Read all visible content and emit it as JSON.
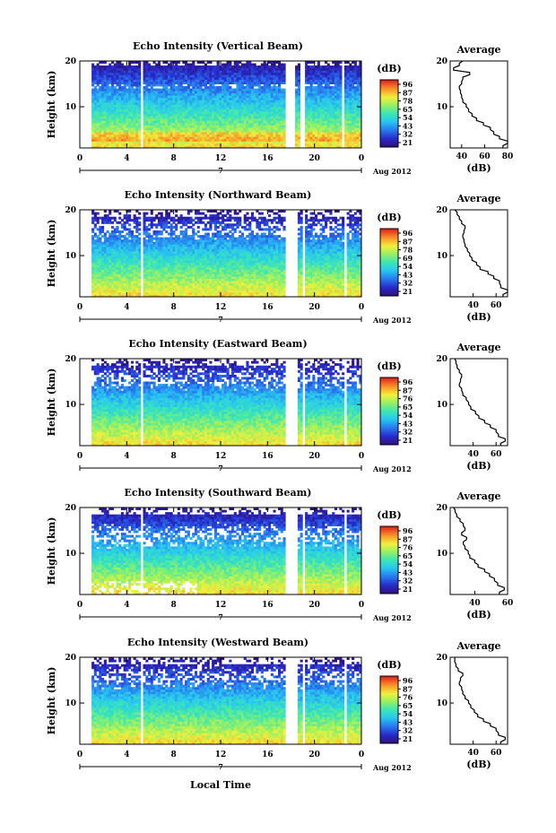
{
  "figure": {
    "xlabel": "Local Time",
    "date_label": "Aug 2012",
    "day_marker": "7",
    "avg_title": "Average",
    "avg_xlabel": "(dB)",
    "cbar_label": "(dB)",
    "panel_ylabel": "Height (km)"
  },
  "chart_data": [
    {
      "type": "heatmap",
      "title": "Echo Intensity (Vertical Beam)",
      "ylabel": "Height (km)",
      "xlim": [
        0,
        24
      ],
      "ylim": [
        1,
        20
      ],
      "x_ticks": [
        "0",
        "4",
        "8",
        "12",
        "16",
        "20",
        "0"
      ],
      "y_ticks": [
        "10",
        "20"
      ],
      "colorbar": {
        "label": "(dB)",
        "ticks": [
          96,
          87,
          78,
          65,
          54,
          43,
          32,
          21
        ]
      },
      "gaps_hours": [
        [
          5.1,
          5.4
        ],
        [
          17.6,
          18.4
        ],
        [
          18.8,
          19.1
        ],
        [
          22.4,
          22.6
        ]
      ],
      "avg_profile": {
        "title": "Average",
        "xlabel": "(dB)",
        "xlim": [
          30,
          80
        ],
        "x_ticks": [
          40,
          60,
          80
        ],
        "height": [
          1,
          2,
          3,
          4,
          5,
          6,
          7,
          8,
          9,
          10,
          11,
          12,
          13,
          14,
          15,
          16,
          17,
          18,
          19,
          20
        ],
        "db": [
          76,
          80,
          73,
          68,
          65,
          59,
          53,
          49,
          46,
          44,
          41,
          40,
          39,
          38,
          40,
          41,
          47,
          33,
          38,
          41
        ]
      }
    },
    {
      "type": "heatmap",
      "title": "Echo Intensity (Northward Beam)",
      "ylabel": "Height (km)",
      "xlim": [
        0,
        24
      ],
      "ylim": [
        1,
        20
      ],
      "x_ticks": [
        "0",
        "4",
        "8",
        "12",
        "16",
        "20",
        "0"
      ],
      "y_ticks": [
        "10",
        "20"
      ],
      "colorbar": {
        "label": "(dB)",
        "ticks": [
          96,
          87,
          78,
          69,
          54,
          43,
          32,
          21
        ]
      },
      "gaps_hours": [
        [
          5.1,
          5.4
        ],
        [
          17.6,
          18.5
        ],
        [
          19.0,
          19.2
        ],
        [
          22.5,
          22.7
        ]
      ],
      "avg_profile": {
        "title": "Average",
        "xlabel": "(dB)",
        "xlim": [
          20,
          70
        ],
        "x_ticks": [
          40,
          60
        ],
        "height": [
          1,
          2,
          3,
          4,
          5,
          6,
          7,
          8,
          9,
          10,
          11,
          12,
          13,
          14,
          15,
          16,
          17,
          18,
          19,
          20
        ],
        "db": [
          66,
          70,
          64,
          63,
          58,
          53,
          46,
          43,
          39,
          37,
          35,
          33,
          32,
          31,
          32,
          33,
          30,
          28,
          26,
          24
        ]
      }
    },
    {
      "type": "heatmap",
      "title": "Echo Intensity (Eastward Beam)",
      "ylabel": "Height (km)",
      "xlim": [
        0,
        24
      ],
      "ylim": [
        1,
        20
      ],
      "x_ticks": [
        "0",
        "4",
        "8",
        "12",
        "16",
        "20",
        "0"
      ],
      "y_ticks": [
        "10",
        "20"
      ],
      "colorbar": {
        "label": "(dB)",
        "ticks": [
          96,
          87,
          76,
          65,
          54,
          43,
          32,
          21
        ]
      },
      "gaps_hours": [
        [
          5.1,
          5.4
        ],
        [
          17.6,
          18.5
        ],
        [
          19.0,
          19.2
        ],
        [
          22.5,
          22.7
        ]
      ],
      "avg_profile": {
        "title": "Average",
        "xlabel": "(dB)",
        "xlim": [
          20,
          70
        ],
        "x_ticks": [
          40,
          60
        ],
        "height": [
          1,
          2,
          3,
          4,
          5,
          6,
          7,
          8,
          9,
          10,
          11,
          12,
          13,
          14,
          15,
          16,
          17,
          18,
          19,
          20
        ],
        "db": [
          64,
          68,
          62,
          60,
          55,
          50,
          45,
          42,
          38,
          36,
          34,
          31,
          30,
          28,
          29,
          30,
          28,
          26,
          25,
          24
        ]
      }
    },
    {
      "type": "heatmap",
      "title": "Echo Intensity (Southward Beam)",
      "ylabel": "Height (km)",
      "xlim": [
        0,
        24
      ],
      "ylim": [
        1,
        20
      ],
      "x_ticks": [
        "0",
        "4",
        "8",
        "12",
        "16",
        "20",
        "0"
      ],
      "y_ticks": [
        "10",
        "20"
      ],
      "colorbar": {
        "label": "(dB)",
        "ticks": [
          96,
          87,
          76,
          65,
          54,
          43,
          32,
          21
        ]
      },
      "gaps_hours": [
        [
          5.1,
          5.4
        ],
        [
          17.6,
          18.5
        ],
        [
          19.0,
          19.2
        ],
        [
          22.5,
          22.7
        ]
      ],
      "avg_profile": {
        "title": "Average",
        "xlabel": "(dB)",
        "xlim": [
          25,
          60
        ],
        "x_ticks": [
          40,
          60
        ],
        "height": [
          1,
          2,
          3,
          4,
          5,
          6,
          7,
          8,
          9,
          10,
          11,
          12,
          13,
          14,
          15,
          16,
          17,
          18,
          19,
          20
        ],
        "db": [
          55,
          58,
          54,
          52,
          49,
          46,
          42,
          40,
          37,
          36,
          34,
          33,
          35,
          32,
          34,
          33,
          31,
          29,
          28,
          27
        ]
      }
    },
    {
      "type": "heatmap",
      "title": "Echo Intensity (Westward Beam)",
      "ylabel": "Height (km)",
      "xlim": [
        0,
        24
      ],
      "ylim": [
        1,
        20
      ],
      "x_ticks": [
        "0",
        "4",
        "8",
        "12",
        "16",
        "20",
        "0"
      ],
      "y_ticks": [
        "10",
        "20"
      ],
      "colorbar": {
        "label": "(dB)",
        "ticks": [
          96,
          87,
          76,
          65,
          54,
          43,
          32,
          21
        ]
      },
      "gaps_hours": [
        [
          5.1,
          5.4
        ],
        [
          17.6,
          18.5
        ],
        [
          19.0,
          19.2
        ],
        [
          22.5,
          22.7
        ]
      ],
      "avg_profile": {
        "title": "Average",
        "xlabel": "(dB)",
        "xlim": [
          20,
          70
        ],
        "x_ticks": [
          40,
          60
        ],
        "height": [
          1,
          2,
          3,
          4,
          5,
          6,
          7,
          8,
          9,
          10,
          11,
          12,
          13,
          14,
          15,
          16,
          17,
          18,
          19,
          20
        ],
        "db": [
          64,
          68,
          62,
          60,
          55,
          49,
          44,
          41,
          38,
          36,
          33,
          31,
          30,
          28,
          29,
          31,
          27,
          25,
          24,
          24
        ]
      }
    }
  ]
}
